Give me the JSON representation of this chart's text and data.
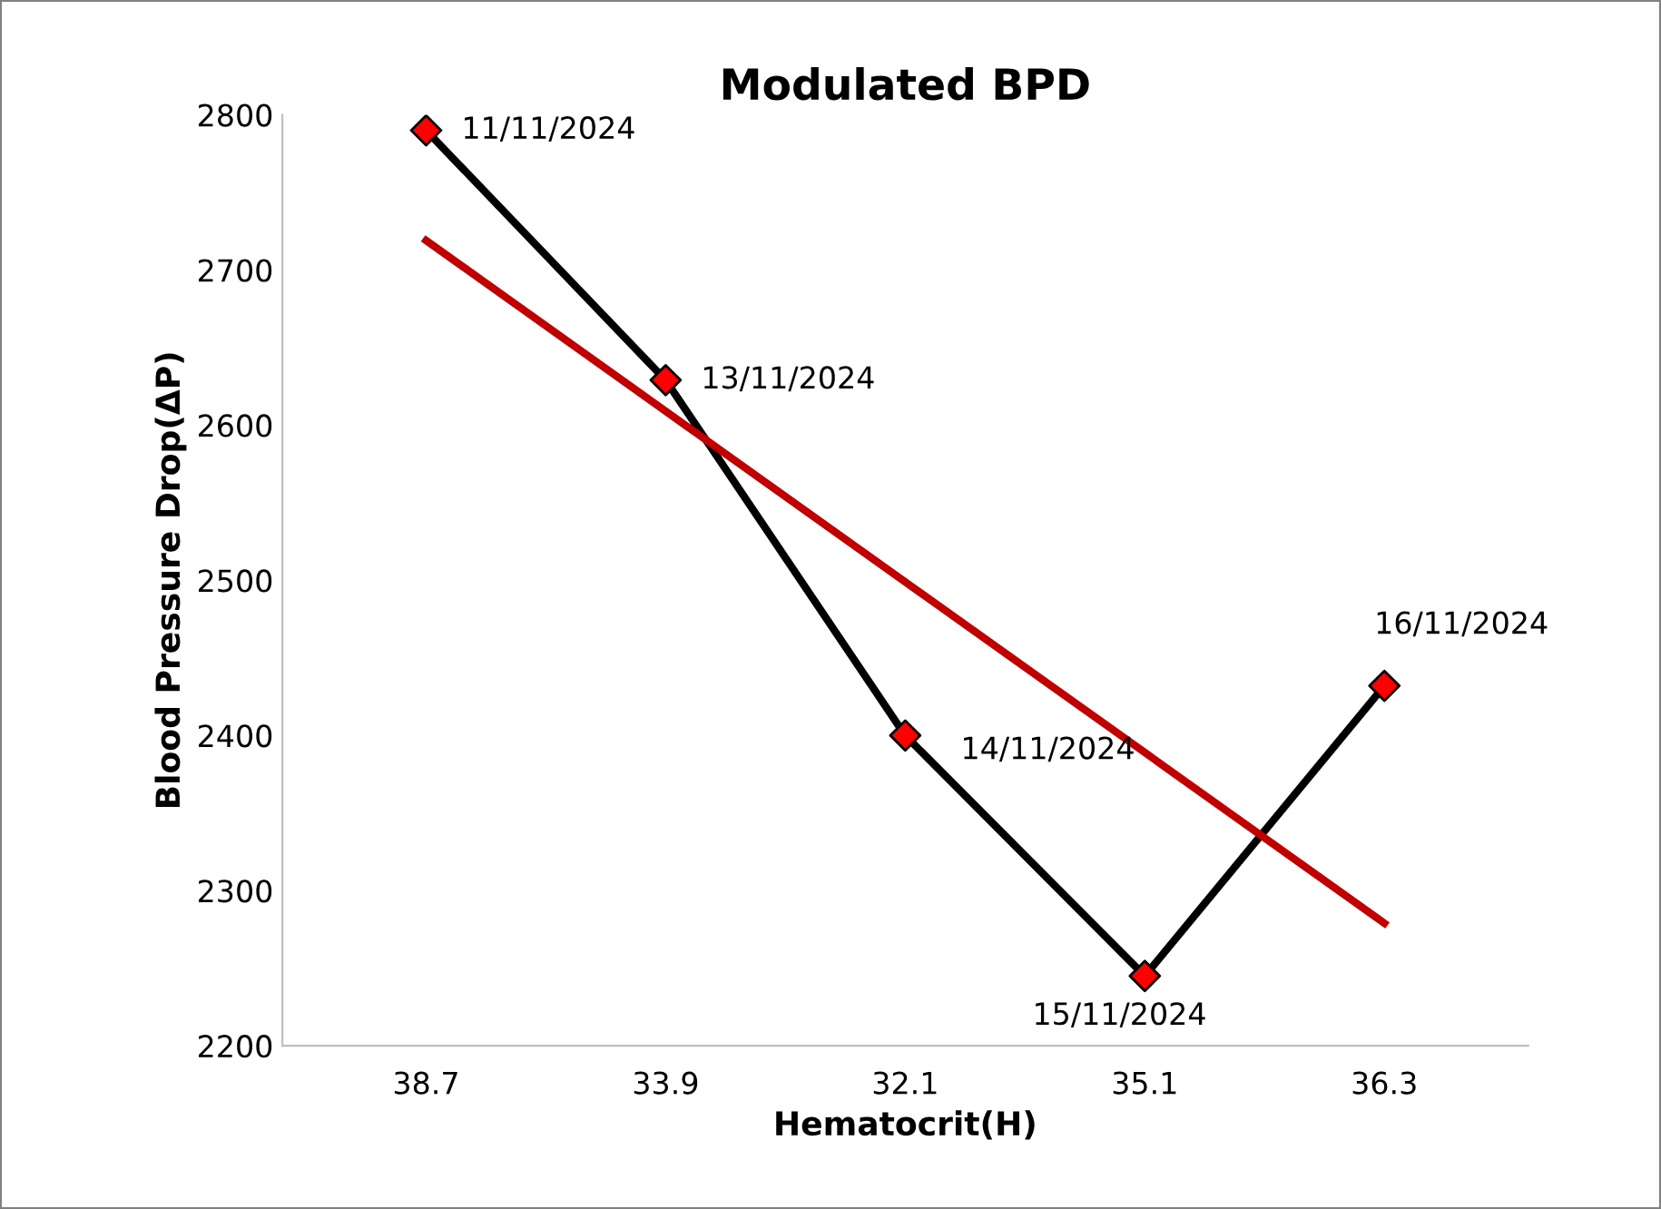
{
  "chart_data": {
    "type": "line",
    "title": "Modulated BPD",
    "xlabel": "Hematocrit(H)",
    "ylabel": "Blood Pressure Drop(ΔP)",
    "categories": [
      "38.7",
      "33.9",
      "32.1",
      "35.1",
      "36.3"
    ],
    "series": [
      {
        "color": "#000000",
        "values": [
          2790,
          2629,
          2400,
          2245,
          2432
        ],
        "marker": "diamond",
        "colors": [
          "#ff0000",
          "#ff0000",
          "#ff0000",
          "#ff0000",
          "#ff0000"
        ]
      },
      {
        "type": "line",
        "color": "#c00000",
        "x": [
          "38.7",
          "36.3"
        ],
        "values": [
          2719,
          2279
        ],
        "marker": "none"
      }
    ],
    "ylim": [
      2200,
      2800
    ],
    "yticks": [
      2200,
      2300,
      2400,
      2500,
      2600,
      2700,
      2800
    ],
    "grid": false,
    "legend": false,
    "annotations": [
      {
        "text": "11/11/2024",
        "x": "38.7",
        "y": 2790
      },
      {
        "text": "13/11/2024",
        "x": "33.9",
        "y": 2629
      },
      {
        "text": "14/11/2024",
        "x": "32.1",
        "y": 2400
      },
      {
        "text": "15/11/2024",
        "x": "35.1",
        "y": 2245
      },
      {
        "text": "16/11/2024",
        "x": "36.3",
        "y": 2432
      }
    ]
  }
}
